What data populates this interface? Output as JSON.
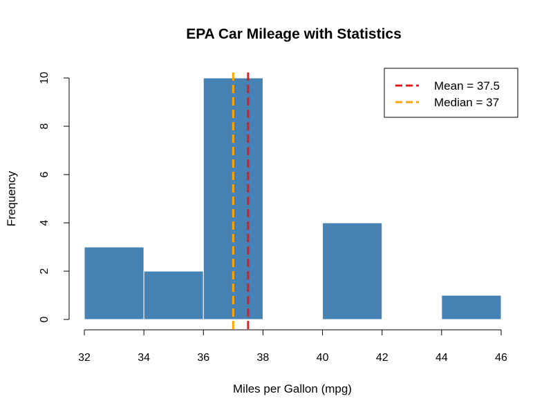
{
  "chart_data": {
    "type": "bar",
    "title": "EPA Car Mileage with Statistics",
    "xlabel": "Miles per Gallon (mpg)",
    "ylabel": "Frequency",
    "bins": [
      {
        "x0": 32,
        "x1": 34,
        "count": 3
      },
      {
        "x0": 34,
        "x1": 36,
        "count": 2
      },
      {
        "x0": 36,
        "x1": 38,
        "count": 10
      },
      {
        "x0": 38,
        "x1": 40,
        "count": 0
      },
      {
        "x0": 40,
        "x1": 42,
        "count": 4
      },
      {
        "x0": 42,
        "x1": 44,
        "count": 0
      },
      {
        "x0": 44,
        "x1": 46,
        "count": 1
      }
    ],
    "xlim": [
      32,
      46
    ],
    "ylim": [
      0,
      10
    ],
    "xticks": [
      32,
      34,
      36,
      38,
      40,
      42,
      44,
      46
    ],
    "yticks": [
      0,
      2,
      4,
      6,
      8,
      10
    ],
    "bar_color": "#4682B4",
    "grid": false,
    "reference_lines": [
      {
        "label": "Mean = 37.5",
        "value": 37.5,
        "color": "#E41A1C"
      },
      {
        "label": "Median = 37",
        "value": 37,
        "color": "#FFA500"
      }
    ],
    "legend_position": "top-right"
  }
}
